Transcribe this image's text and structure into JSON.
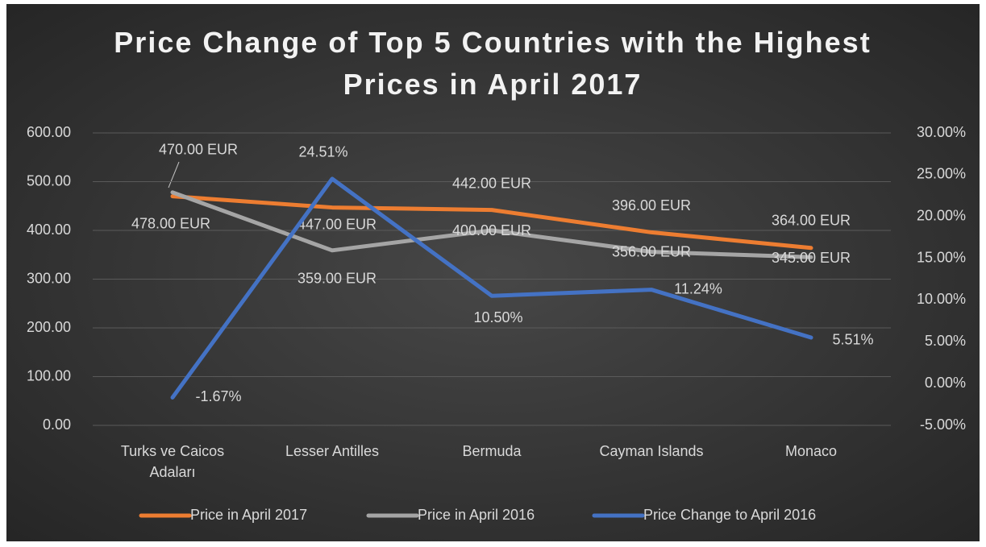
{
  "chart_data": {
    "type": "line",
    "title": "Price Change of Top 5 Countries with the Highest Prices in April 2017",
    "categories": [
      "Turks ve Caicos Adaları",
      "Lesser Antilles",
      "Bermuda",
      "Cayman Islands",
      "Monaco"
    ],
    "series": [
      {
        "name": "Price in April 2017",
        "color": "#ED7D31",
        "values": [
          470,
          447,
          442,
          396,
          364
        ],
        "value_labels": [
          "470.00 EUR",
          "447.00 EUR",
          "442.00 EUR",
          "396.00 EUR",
          "364.00 EUR"
        ]
      },
      {
        "name": "Price in April 2016",
        "color": "#A5A5A5",
        "values": [
          478,
          359,
          400,
          356,
          345
        ],
        "value_labels": [
          "478.00 EUR",
          "359.00 EUR",
          "400.00 EUR",
          "356.00 EUR",
          "345.00 EUR"
        ]
      },
      {
        "name": "Price Change to April 2016",
        "color": "#4472C4",
        "axis": "y2",
        "values": [
          -1.67,
          24.51,
          10.5,
          11.24,
          5.51
        ],
        "value_labels": [
          "-1.67%",
          "24.51%",
          "10.50%",
          "11.24%",
          "5.51%"
        ]
      }
    ],
    "ylim": [
      0,
      600
    ],
    "yticks": [
      {
        "value": 0,
        "label": "0.00"
      },
      {
        "value": 100,
        "label": "100.00"
      },
      {
        "value": 200,
        "label": "200.00"
      },
      {
        "value": 300,
        "label": "300.00"
      },
      {
        "value": 400,
        "label": "400.00"
      },
      {
        "value": 500,
        "label": "500.00"
      },
      {
        "value": 600,
        "label": "600.00"
      }
    ],
    "y2lim": [
      -5,
      30
    ],
    "y2ticks": [
      {
        "value": -5,
        "label": "-5.00%"
      },
      {
        "value": 0,
        "label": "0.00%"
      },
      {
        "value": 5,
        "label": "5.00%"
      },
      {
        "value": 10,
        "label": "10.00%"
      },
      {
        "value": 15,
        "label": "15.00%"
      },
      {
        "value": 20,
        "label": "20.00%"
      },
      {
        "value": 25,
        "label": "25.00%"
      },
      {
        "value": 30,
        "label": "30.00%"
      }
    ],
    "grid": true,
    "legend": "bottom"
  }
}
